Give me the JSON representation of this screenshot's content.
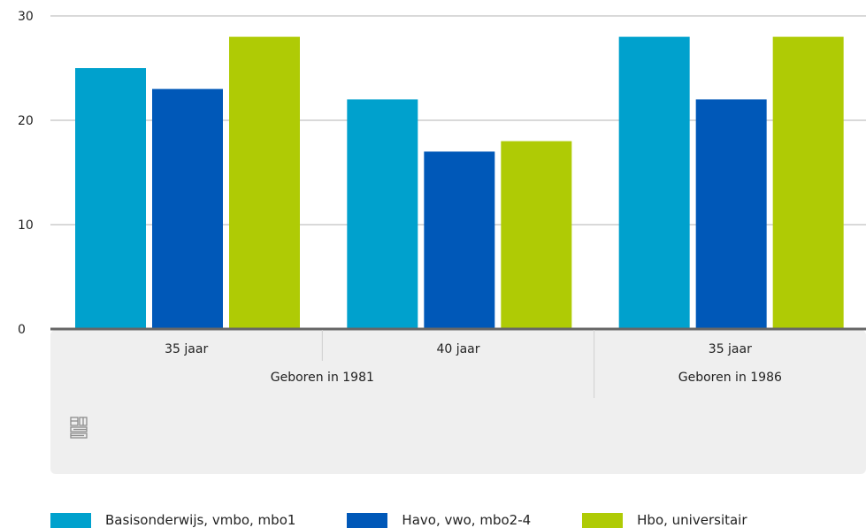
{
  "chart_data": {
    "type": "bar",
    "categories": [
      "35 jaar",
      "40 jaar",
      "35 jaar"
    ],
    "groups": [
      {
        "label": "Geboren in 1981",
        "span": [
          0,
          1
        ]
      },
      {
        "label": "Geboren in 1986",
        "span": [
          2,
          2
        ]
      }
    ],
    "series": [
      {
        "name": "Basisonderwijs, vmbo, mbo1",
        "color": "#00a1cd",
        "values": [
          25,
          22,
          28
        ]
      },
      {
        "name": "Havo, vwo, mbo2-4",
        "color": "#0058b8",
        "values": [
          23,
          17,
          22
        ]
      },
      {
        "name": "Hbo, universitair",
        "color": "#afcb05",
        "values": [
          28,
          18,
          28
        ]
      }
    ],
    "yticks": [
      0,
      10,
      20,
      30
    ],
    "ylim": [
      0,
      30
    ],
    "grid": true,
    "legend_position": "bottom",
    "logo": "cbs"
  }
}
